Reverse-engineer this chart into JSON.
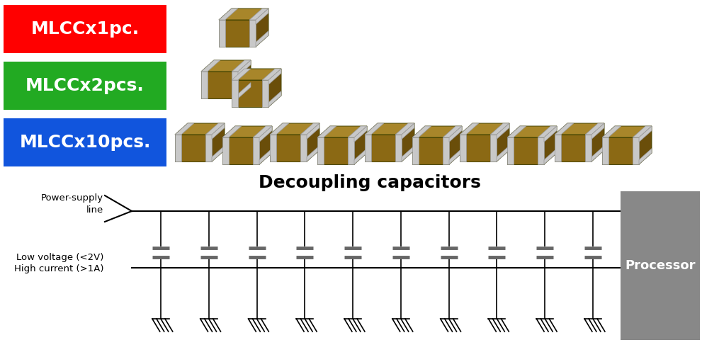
{
  "fig_width": 9.91,
  "fig_height": 4.87,
  "bg_color": "#ffffff",
  "legend_labels": [
    "MLCCx1pc.",
    "MLCCx2pcs.",
    "MLCCx10pcs."
  ],
  "legend_colors": [
    "#ff0000",
    "#22aa22",
    "#1155dd"
  ],
  "legend_text_color": "#ffffff",
  "legend_font_size": 18,
  "diagram_title": "Decoupling capacitors",
  "diagram_title_fontsize": 18,
  "processor_label": "Processor",
  "processor_color": "#888888",
  "processor_text_color": "#ffffff",
  "num_capacitors": 10,
  "line_color": "#000000",
  "cap_plate_color": "#666666",
  "mlcc_body_color": "#8B6914",
  "mlcc_top_color": "#a8862a",
  "mlcc_right_color": "#6a4e0a",
  "mlcc_silver_color": "#c8c8c8",
  "mlcc_edge_color": "#444400",
  "mlcc_silver_edge": "#999999"
}
